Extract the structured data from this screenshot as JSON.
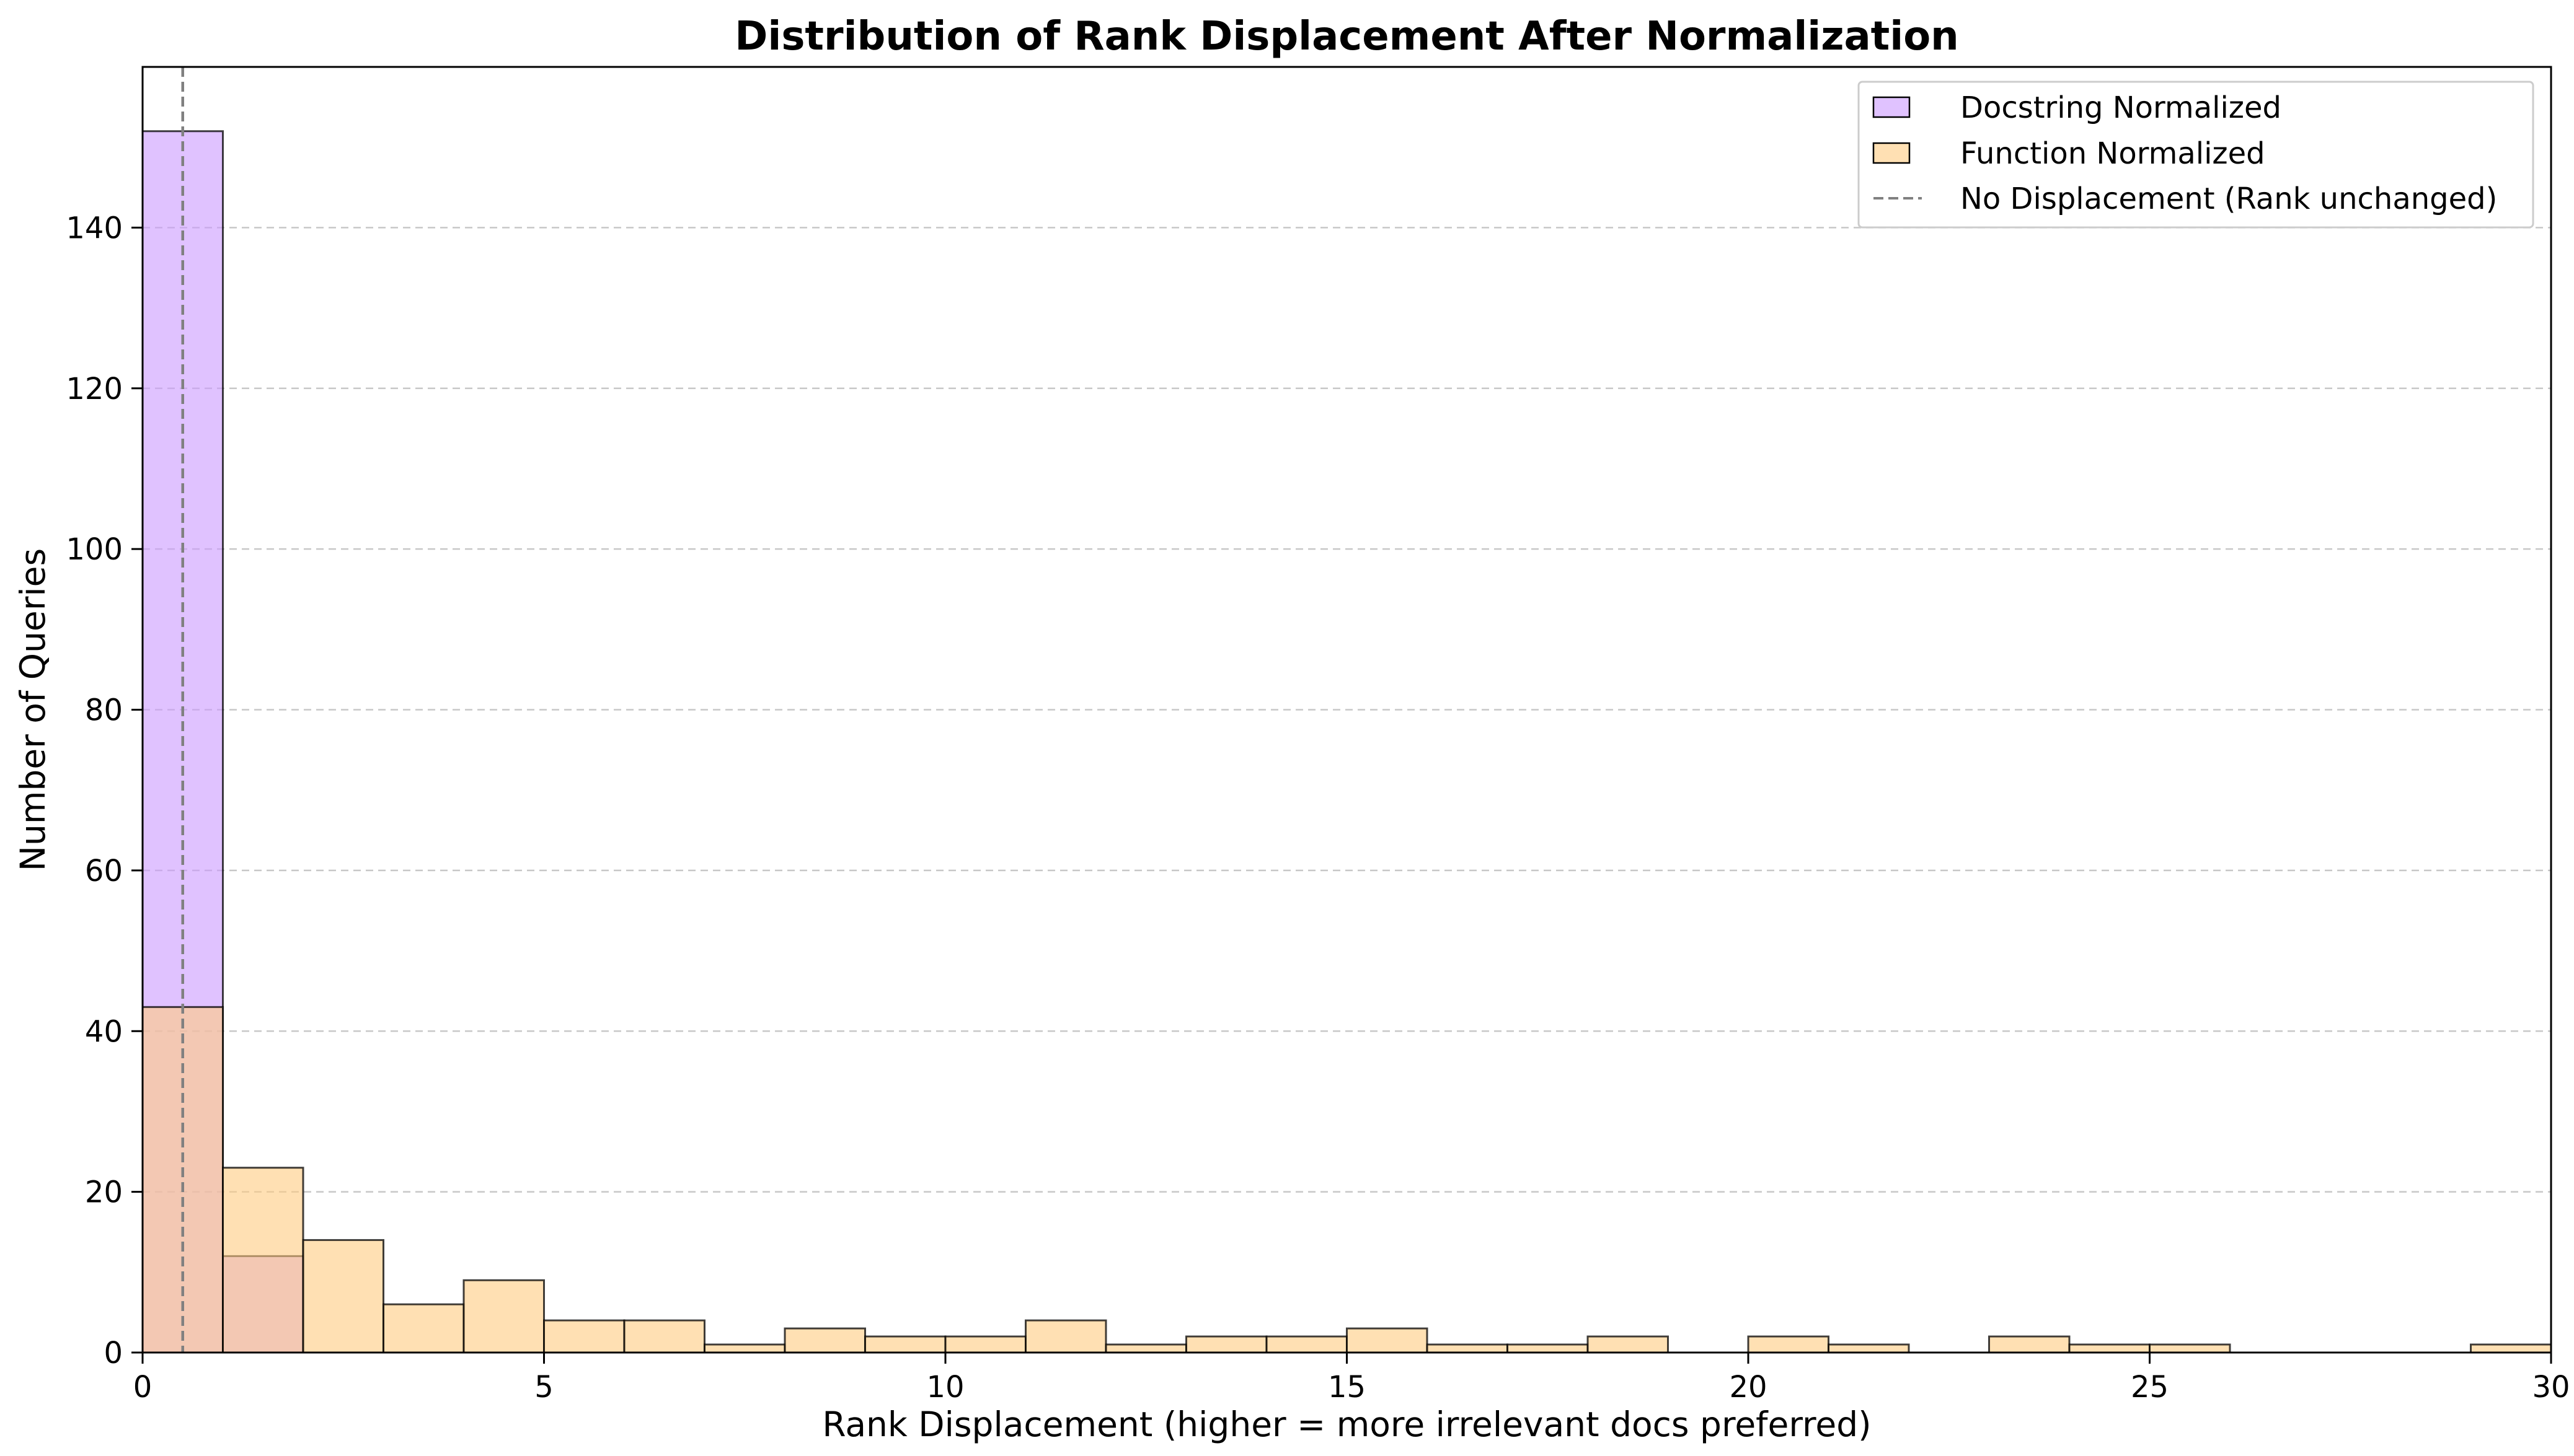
{
  "chart_data": {
    "type": "bar",
    "title": "Distribution of Rank Displacement After Normalization",
    "xlabel": "Rank Displacement (higher = more irrelevant docs preferred)",
    "ylabel": "Number of Queries",
    "xlim": [
      0,
      30
    ],
    "ylim": [
      0,
      160
    ],
    "x_ticks": [
      0,
      5,
      10,
      15,
      20,
      25,
      30
    ],
    "y_ticks": [
      0,
      20,
      40,
      60,
      80,
      100,
      120,
      140
    ],
    "grid": "y-dashed",
    "legend_position": "top-right",
    "bin_edges": [
      0,
      1,
      2,
      3,
      4,
      5,
      6,
      7,
      8,
      9,
      10,
      11,
      12,
      13,
      14,
      15,
      16,
      17,
      18,
      19,
      20,
      21,
      22,
      23,
      24,
      25,
      26,
      27,
      28,
      29,
      30
    ],
    "series": [
      {
        "name": "Docstring Normalized",
        "color": "#cc99ff",
        "values": [
          152,
          12,
          0,
          0,
          0,
          0,
          0,
          0,
          0,
          0,
          0,
          0,
          0,
          0,
          0,
          0,
          0,
          0,
          0,
          0,
          0,
          0,
          0,
          0,
          0,
          0,
          0,
          0,
          0,
          0
        ]
      },
      {
        "name": "Function Normalized",
        "color": "#ffcc80",
        "values": [
          43,
          23,
          14,
          6,
          9,
          4,
          4,
          1,
          3,
          2,
          2,
          4,
          1,
          2,
          2,
          3,
          1,
          1,
          2,
          0,
          2,
          1,
          0,
          2,
          1,
          1,
          0,
          0,
          0,
          1
        ]
      }
    ],
    "reference_line": {
      "name": "No Displacement (Rank unchanged)",
      "x": 0.5,
      "color": "#808080",
      "style": "dashed"
    }
  }
}
